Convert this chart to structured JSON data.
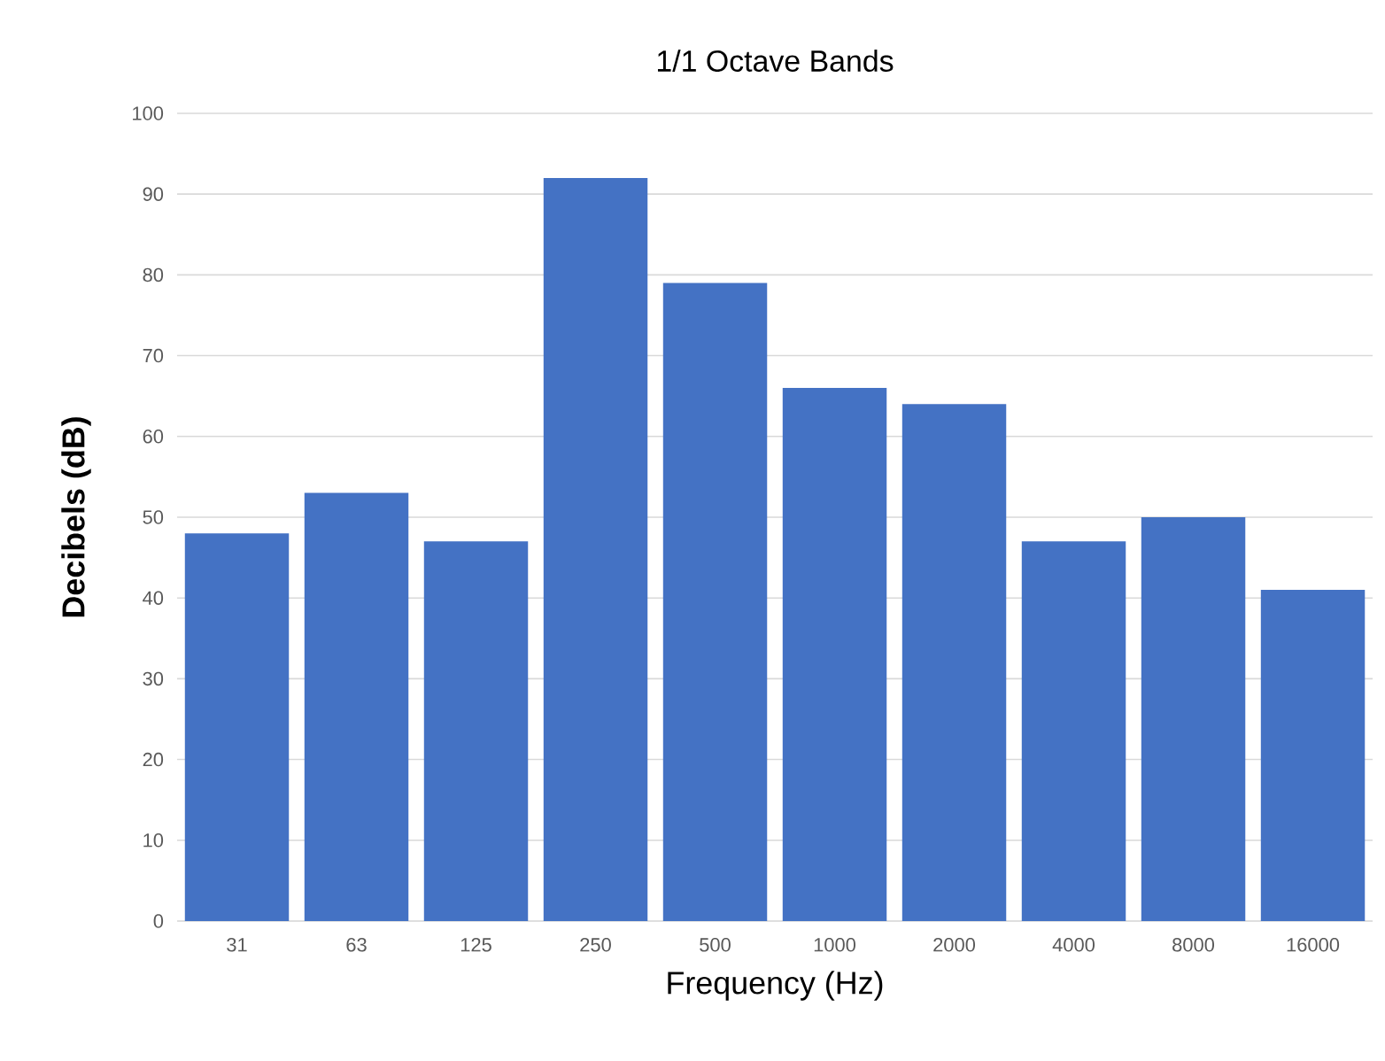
{
  "chart_data": {
    "type": "bar",
    "title": "1/1 Octave Bands",
    "xlabel": "Frequency (Hz)",
    "ylabel": "Decibels (dB)",
    "categories": [
      "31",
      "63",
      "125",
      "250",
      "500",
      "1000",
      "2000",
      "4000",
      "8000",
      "16000"
    ],
    "values": [
      48,
      53,
      47,
      92,
      79,
      66,
      64,
      47,
      50,
      41
    ],
    "color": "#4472c4",
    "ylim": [
      0,
      100
    ],
    "yticks": [
      0,
      10,
      20,
      30,
      40,
      50,
      60,
      70,
      80,
      90,
      100
    ],
    "grid": "y"
  }
}
